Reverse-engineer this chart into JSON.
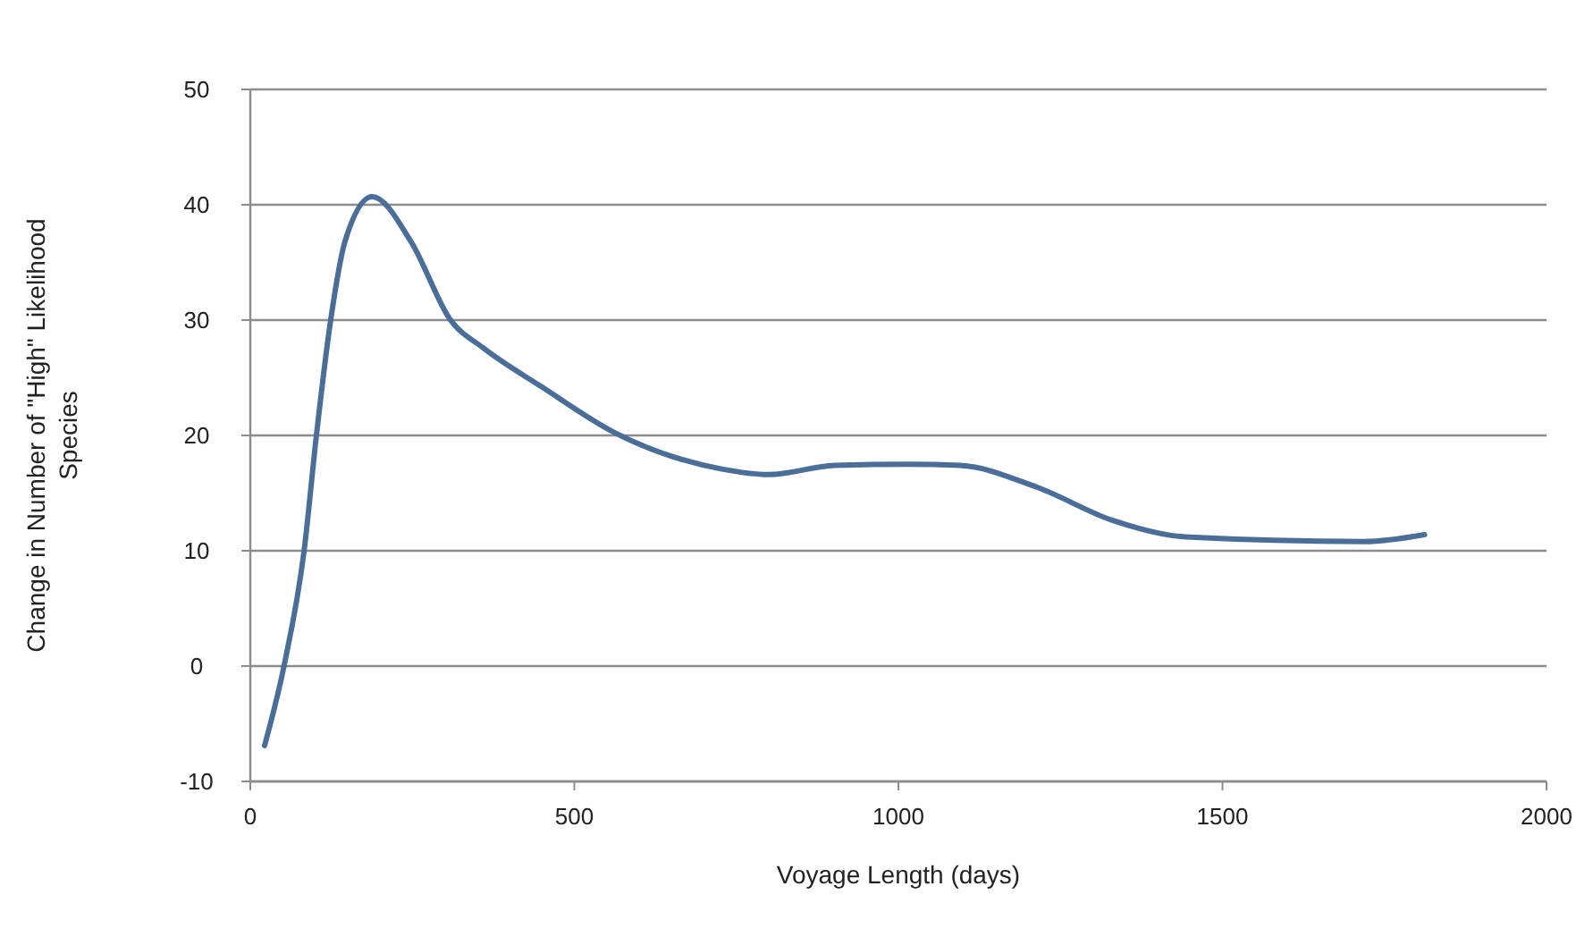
{
  "chart_data": {
    "type": "line",
    "xlabel": "Voyage Length (days)",
    "ylabel": "Change in Number of \"High\" Likelihood Species",
    "x": [
      22,
      52,
      83,
      102,
      124,
      146,
      188,
      248,
      309,
      359,
      450,
      560,
      726,
      800,
      902,
      1015,
      1095,
      1214,
      1332,
      1443,
      1719,
      1812
    ],
    "series": [
      {
        "color": "#4a6e98",
        "values": [
          -6.9,
          0,
          10,
          20,
          30,
          36.8,
          40.7,
          36.8,
          30,
          27.6,
          24.2,
          20.3,
          17.1,
          16.6,
          17.4,
          17.5,
          17.4,
          15.5,
          12.6,
          11.2,
          10.8,
          11.4
        ]
      }
    ],
    "xlim": [
      0,
      2000
    ],
    "xticks": [
      0,
      500,
      1000,
      1500,
      2000
    ],
    "ylim": [
      -10,
      50
    ],
    "yticks": [
      -10,
      0,
      10,
      20,
      30,
      40,
      50
    ],
    "grid": "y",
    "marker": "none",
    "line_style": "solid"
  }
}
